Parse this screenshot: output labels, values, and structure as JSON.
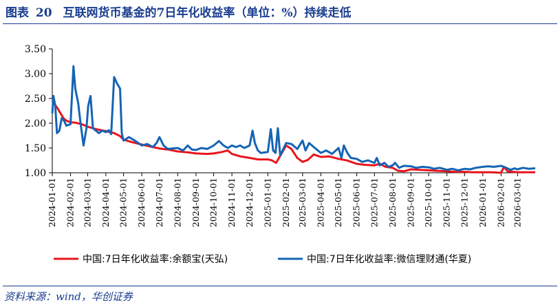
{
  "header": {
    "figure_label": "图表",
    "figure_number": "20",
    "title": "互联网货币基金的7日年化收益率（单位：%）持续走低"
  },
  "source": "资料来源：wind，华创证券",
  "colors": {
    "title": "#1a3d8f",
    "series_yuebao": "#e8141c",
    "series_weixin": "#1464b4"
  },
  "chart_data": {
    "type": "line",
    "ylim": [
      1.0,
      3.5
    ],
    "yticks": [
      "1.00",
      "1.50",
      "2.00",
      "2.50",
      "3.00",
      "3.50"
    ],
    "xticks": [
      "2024-01-01",
      "2024-02-01",
      "2024-03-01",
      "2024-04-01",
      "2024-05-01",
      "2024-06-01",
      "2024-07-01",
      "2024-08-01",
      "2024-09-01",
      "2024-10-01",
      "2024-11-01",
      "2024-12-01",
      "2025-01-01",
      "2025-02-01",
      "2025-03-01",
      "2025-04-01",
      "2025-05-01",
      "2025-06-01",
      "2025-07-01",
      "2025-08-01",
      "2025-09-01",
      "2025-10-01",
      "2025-11-01",
      "2025-12-01",
      "2026-01-01",
      "2026-02-01",
      "2026-03-01"
    ],
    "x_range": [
      "2024-01-01",
      "2026-03-31"
    ],
    "legend_position": "bottom",
    "series": [
      {
        "name": "中国:7日年化收益率:余额宝(天弘)",
        "color": "#e8141c",
        "points": [
          [
            "2024-01-01",
            2.45
          ],
          [
            "2024-01-10",
            2.3
          ],
          [
            "2024-01-20",
            2.1
          ],
          [
            "2024-01-25",
            2.05
          ],
          [
            "2024-02-01",
            2.02
          ],
          [
            "2024-02-10",
            2.01
          ],
          [
            "2024-02-20",
            1.98
          ],
          [
            "2024-03-01",
            1.93
          ],
          [
            "2024-03-15",
            1.88
          ],
          [
            "2024-04-01",
            1.84
          ],
          [
            "2024-04-15",
            1.8
          ],
          [
            "2024-04-25",
            1.74
          ],
          [
            "2024-05-01",
            1.67
          ],
          [
            "2024-05-15",
            1.62
          ],
          [
            "2024-06-01",
            1.57
          ],
          [
            "2024-06-15",
            1.53
          ],
          [
            "2024-07-01",
            1.49
          ],
          [
            "2024-07-15",
            1.47
          ],
          [
            "2024-08-01",
            1.43
          ],
          [
            "2024-08-20",
            1.41
          ],
          [
            "2024-09-01",
            1.39
          ],
          [
            "2024-09-20",
            1.38
          ],
          [
            "2024-10-01",
            1.39
          ],
          [
            "2024-10-15",
            1.42
          ],
          [
            "2024-10-25",
            1.45
          ],
          [
            "2024-11-01",
            1.38
          ],
          [
            "2024-11-15",
            1.33
          ],
          [
            "2024-12-01",
            1.3
          ],
          [
            "2024-12-15",
            1.27
          ],
          [
            "2025-01-01",
            1.27
          ],
          [
            "2025-01-08",
            1.25
          ],
          [
            "2025-01-15",
            1.2
          ],
          [
            "2025-01-20",
            1.3
          ],
          [
            "2025-02-01",
            1.55
          ],
          [
            "2025-02-10",
            1.48
          ],
          [
            "2025-02-20",
            1.3
          ],
          [
            "2025-03-01",
            1.22
          ],
          [
            "2025-03-10",
            1.26
          ],
          [
            "2025-03-20",
            1.37
          ],
          [
            "2025-04-01",
            1.32
          ],
          [
            "2025-04-15",
            1.33
          ],
          [
            "2025-05-01",
            1.28
          ],
          [
            "2025-05-15",
            1.25
          ],
          [
            "2025-06-01",
            1.18
          ],
          [
            "2025-06-15",
            1.16
          ],
          [
            "2025-07-01",
            1.15
          ],
          [
            "2025-07-10",
            1.18
          ],
          [
            "2025-07-20",
            1.12
          ],
          [
            "2025-08-01",
            1.1
          ],
          [
            "2025-08-10",
            1.04
          ],
          [
            "2025-08-20",
            1.03
          ],
          [
            "2025-09-01",
            1.07
          ],
          [
            "2025-09-15",
            1.06
          ],
          [
            "2025-10-01",
            1.05
          ],
          [
            "2025-10-15",
            1.04
          ],
          [
            "2025-11-01",
            1.03
          ],
          [
            "2025-11-15",
            1.02
          ],
          [
            "2025-12-01",
            1.02
          ],
          [
            "2025-12-15",
            1.01
          ],
          [
            "2026-01-01",
            1.01
          ],
          [
            "2026-01-15",
            1.01
          ],
          [
            "2026-02-01",
            1.0
          ],
          [
            "2026-02-06",
            1.12
          ],
          [
            "2026-02-12",
            1.03
          ],
          [
            "2026-03-01",
            1.01
          ],
          [
            "2026-03-31",
            1.01
          ]
        ]
      },
      {
        "name": "中国:7日年化收益率:微信理财通(华夏)",
        "color": "#1464b4",
        "points": [
          [
            "2024-01-01",
            2.2
          ],
          [
            "2024-01-03",
            2.55
          ],
          [
            "2024-01-06",
            2.35
          ],
          [
            "2024-01-09",
            1.8
          ],
          [
            "2024-01-13",
            1.85
          ],
          [
            "2024-01-17",
            2.1
          ],
          [
            "2024-01-21",
            2.05
          ],
          [
            "2024-01-25",
            1.95
          ],
          [
            "2024-02-01",
            1.98
          ],
          [
            "2024-02-06",
            3.15
          ],
          [
            "2024-02-09",
            2.7
          ],
          [
            "2024-02-14",
            2.4
          ],
          [
            "2024-02-18",
            2.0
          ],
          [
            "2024-02-23",
            1.55
          ],
          [
            "2024-02-28",
            1.9
          ],
          [
            "2024-03-02",
            2.35
          ],
          [
            "2024-03-06",
            2.55
          ],
          [
            "2024-03-10",
            1.9
          ],
          [
            "2024-03-15",
            1.85
          ],
          [
            "2024-03-20",
            1.8
          ],
          [
            "2024-03-26",
            1.85
          ],
          [
            "2024-04-01",
            1.82
          ],
          [
            "2024-04-06",
            1.86
          ],
          [
            "2024-04-10",
            1.78
          ],
          [
            "2024-04-15",
            2.93
          ],
          [
            "2024-04-20",
            2.8
          ],
          [
            "2024-04-25",
            2.7
          ],
          [
            "2024-04-28",
            1.8
          ],
          [
            "2024-05-01",
            1.65
          ],
          [
            "2024-05-10",
            1.72
          ],
          [
            "2024-05-20",
            1.65
          ],
          [
            "2024-06-01",
            1.55
          ],
          [
            "2024-06-10",
            1.58
          ],
          [
            "2024-06-20",
            1.52
          ],
          [
            "2024-06-26",
            1.6
          ],
          [
            "2024-07-01",
            1.72
          ],
          [
            "2024-07-08",
            1.55
          ],
          [
            "2024-07-15",
            1.48
          ],
          [
            "2024-08-01",
            1.5
          ],
          [
            "2024-08-10",
            1.45
          ],
          [
            "2024-08-18",
            1.55
          ],
          [
            "2024-08-25",
            1.47
          ],
          [
            "2024-09-01",
            1.46
          ],
          [
            "2024-09-10",
            1.5
          ],
          [
            "2024-09-20",
            1.48
          ],
          [
            "2024-10-01",
            1.55
          ],
          [
            "2024-10-10",
            1.64
          ],
          [
            "2024-10-18",
            1.55
          ],
          [
            "2024-10-25",
            1.5
          ],
          [
            "2024-11-01",
            1.55
          ],
          [
            "2024-11-08",
            1.52
          ],
          [
            "2024-11-15",
            1.55
          ],
          [
            "2024-11-22",
            1.5
          ],
          [
            "2024-12-01",
            1.55
          ],
          [
            "2024-12-06",
            1.85
          ],
          [
            "2024-12-10",
            1.6
          ],
          [
            "2024-12-15",
            1.45
          ],
          [
            "2024-12-20",
            1.4
          ],
          [
            "2025-01-01",
            1.42
          ],
          [
            "2025-01-06",
            1.88
          ],
          [
            "2025-01-10",
            1.45
          ],
          [
            "2025-01-14",
            1.4
          ],
          [
            "2025-01-18",
            1.9
          ],
          [
            "2025-01-22",
            1.35
          ],
          [
            "2025-02-01",
            1.6
          ],
          [
            "2025-02-10",
            1.58
          ],
          [
            "2025-02-20",
            1.48
          ],
          [
            "2025-03-01",
            1.65
          ],
          [
            "2025-03-06",
            1.45
          ],
          [
            "2025-03-12",
            1.6
          ],
          [
            "2025-03-20",
            1.52
          ],
          [
            "2025-04-01",
            1.4
          ],
          [
            "2025-04-10",
            1.45
          ],
          [
            "2025-04-20",
            1.38
          ],
          [
            "2025-05-01",
            1.5
          ],
          [
            "2025-05-06",
            1.3
          ],
          [
            "2025-05-10",
            1.55
          ],
          [
            "2025-05-16",
            1.4
          ],
          [
            "2025-05-22",
            1.3
          ],
          [
            "2025-06-01",
            1.28
          ],
          [
            "2025-06-10",
            1.22
          ],
          [
            "2025-06-20",
            1.25
          ],
          [
            "2025-07-01",
            1.2
          ],
          [
            "2025-07-05",
            1.3
          ],
          [
            "2025-07-10",
            1.15
          ],
          [
            "2025-07-18",
            1.2
          ],
          [
            "2025-07-25",
            1.12
          ],
          [
            "2025-08-01",
            1.15
          ],
          [
            "2025-08-05",
            1.2
          ],
          [
            "2025-08-12",
            1.1
          ],
          [
            "2025-08-20",
            1.14
          ],
          [
            "2025-09-01",
            1.13
          ],
          [
            "2025-09-10",
            1.1
          ],
          [
            "2025-09-20",
            1.12
          ],
          [
            "2025-10-01",
            1.11
          ],
          [
            "2025-10-10",
            1.08
          ],
          [
            "2025-10-20",
            1.1
          ],
          [
            "2025-11-01",
            1.06
          ],
          [
            "2025-11-10",
            1.08
          ],
          [
            "2025-11-20",
            1.05
          ],
          [
            "2025-12-01",
            1.08
          ],
          [
            "2025-12-10",
            1.07
          ],
          [
            "2025-12-20",
            1.1
          ],
          [
            "2026-01-01",
            1.12
          ],
          [
            "2026-01-10",
            1.13
          ],
          [
            "2026-01-20",
            1.12
          ],
          [
            "2026-02-01",
            1.14
          ],
          [
            "2026-02-10",
            1.1
          ],
          [
            "2026-02-17",
            1.06
          ],
          [
            "2026-02-24",
            1.09
          ],
          [
            "2026-03-01",
            1.07
          ],
          [
            "2026-03-10",
            1.1
          ],
          [
            "2026-03-20",
            1.08
          ],
          [
            "2026-03-31",
            1.09
          ]
        ]
      }
    ]
  }
}
